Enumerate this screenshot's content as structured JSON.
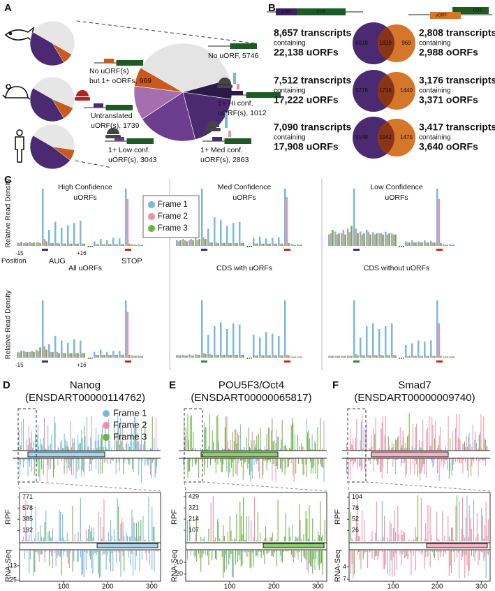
{
  "panel_a": {
    "label": "A",
    "small_pies": {
      "colors": [
        "#e6e6e6",
        "#c85a1e",
        "#4b2a72"
      ],
      "values": [
        [
          50,
          8,
          42
        ],
        [
          48,
          10,
          42
        ],
        [
          44,
          8,
          48
        ]
      ]
    },
    "big_pie": {
      "slices": [
        {
          "label": [
            "No uORF, 5746"
          ],
          "value": 5746,
          "color": "#e4e4e4"
        },
        {
          "label": [
            "1+ Hi conf.",
            "uORF(s), 1012"
          ],
          "value": 1012,
          "color": "#2b1a47"
        },
        {
          "label": [
            "1+ Med conf.",
            "uORF(s), 2863"
          ],
          "value": 2863,
          "color": "#4b2a72"
        },
        {
          "label": [
            "1+ Low conf.",
            "uORF(s), 3043"
          ],
          "value": 3043,
          "color": "#6c3d8e"
        },
        {
          "label": [
            "Untranslated",
            "uORF(s), 1739"
          ],
          "value": 1739,
          "color": "#a56fae"
        },
        {
          "label": [
            "No uORF(s)",
            "but 1+ oORFs, 969"
          ],
          "value": 969,
          "color": "#c85a1e"
        }
      ]
    }
  },
  "panel_b": {
    "label": "B",
    "uorf_tag": "uORF",
    "cds_tag": "CDS",
    "rows": [
      {
        "left": [
          "8,657 transcripts",
          "containing",
          "22,138 uORFs"
        ],
        "venn": [
          6818,
          1839,
          969
        ],
        "right": [
          "2,808 transcripts",
          "containing",
          "2,988 oORFs"
        ]
      },
      {
        "left": [
          "7,512 transcripts",
          "containing",
          "17,222 uORFs"
        ],
        "venn": [
          5776,
          1736,
          1440
        ],
        "right": [
          "3,176 transcripts",
          "containing",
          "3,371 oORFs"
        ]
      },
      {
        "left": [
          "7,090 transcripts",
          "containing",
          "17,908 uORFs"
        ],
        "venn": [
          5148,
          1942,
          1475
        ],
        "right": [
          "3,417 transcripts",
          "containing",
          "3,640 oORFs"
        ]
      }
    ]
  },
  "panel_c": {
    "label": "C",
    "y_label": "Relative Read Density",
    "legend": [
      "Frame 1",
      "Frame 2",
      "Frame 3"
    ],
    "frame_colors": [
      "#7ab8dd",
      "#f08fa8",
      "#6db33f"
    ],
    "position_label": "Position",
    "start_pos": "-15",
    "end_pos": "+16",
    "ellipsis": "...",
    "aug": "AUG",
    "stop": "STOP",
    "aug_color": "#4b2a72",
    "stop_color": "#d42020",
    "facets": [
      {
        "title": [
          "High Confidence",
          "uORFs"
        ],
        "start_marker_color": "#4b2a72",
        "start": [
          [
            0.06,
            0.05,
            0.07
          ],
          [
            0.05,
            0.06,
            0.05
          ],
          [
            0.07,
            0.05,
            0.06
          ],
          [
            0.06,
            0.07,
            0.05
          ],
          [
            1,
            0.12,
            0.08
          ],
          [
            0.28,
            0.05,
            0.05
          ],
          [
            0.42,
            0.05,
            0.04
          ],
          [
            0.32,
            0.04,
            0.04
          ],
          [
            0.36,
            0.04,
            0.04
          ],
          [
            0.4,
            0.04,
            0.04
          ],
          [
            0.44,
            0.04,
            0.04
          ]
        ],
        "stop": [
          [
            0.08,
            0.03,
            0.03
          ],
          [
            0.12,
            0.03,
            0.03
          ],
          [
            0.1,
            0.03,
            0.03
          ],
          [
            0.14,
            0.03,
            0.03
          ],
          [
            0.13,
            0.03,
            0.03
          ],
          [
            1,
            0.82,
            0.04
          ],
          [
            0.03,
            0.02,
            0.02
          ],
          [
            0.03,
            0.02,
            0.02
          ]
        ]
      },
      {
        "title": [
          "Med Confidence",
          "uORFs"
        ],
        "start_marker_color": "#4b2a72",
        "start": [
          [
            0.1,
            0.08,
            0.1
          ],
          [
            0.12,
            0.1,
            0.08
          ],
          [
            0.1,
            0.12,
            0.1
          ],
          [
            0.14,
            0.1,
            0.12
          ],
          [
            1,
            0.15,
            0.12
          ],
          [
            0.3,
            0.06,
            0.06
          ],
          [
            0.5,
            0.06,
            0.05
          ],
          [
            0.45,
            0.05,
            0.05
          ],
          [
            0.35,
            0.05,
            0.05
          ],
          [
            0.4,
            0.05,
            0.05
          ],
          [
            0.42,
            0.05,
            0.05
          ]
        ],
        "stop": [
          [
            0.14,
            0.04,
            0.04
          ],
          [
            0.16,
            0.04,
            0.04
          ],
          [
            0.13,
            0.04,
            0.04
          ],
          [
            0.14,
            0.04,
            0.04
          ],
          [
            0.15,
            0.04,
            0.04
          ],
          [
            1,
            0.85,
            0.05
          ],
          [
            0.03,
            0.02,
            0.02
          ],
          [
            0.03,
            0.02,
            0.02
          ]
        ]
      },
      {
        "title": [
          "Low Confidence",
          "uORFs"
        ],
        "start_marker_color": "#4b2a72",
        "start": [
          [
            0.2,
            0.22,
            0.28
          ],
          [
            0.25,
            0.2,
            0.22
          ],
          [
            0.22,
            0.28,
            0.2
          ],
          [
            0.3,
            0.24,
            0.35
          ],
          [
            1,
            0.3,
            0.22
          ],
          [
            0.25,
            0.2,
            0.22
          ],
          [
            0.28,
            0.25,
            0.2
          ],
          [
            0.24,
            0.2,
            0.22
          ],
          [
            0.22,
            0.22,
            0.2
          ],
          [
            0.25,
            0.2,
            0.22
          ],
          [
            0.22,
            0.2,
            0.2
          ]
        ],
        "stop": [
          [
            0.08,
            0.06,
            0.06
          ],
          [
            0.1,
            0.06,
            0.06
          ],
          [
            0.08,
            0.06,
            0.06
          ],
          [
            0.1,
            0.06,
            0.06
          ],
          [
            0.09,
            0.06,
            0.06
          ],
          [
            1,
            0.82,
            0.05
          ],
          [
            0.03,
            0.02,
            0.02
          ],
          [
            0.03,
            0.02,
            0.02
          ]
        ]
      },
      {
        "title": [
          "All uORFs"
        ],
        "start_marker_color": "#4b2a72",
        "start": [
          [
            0.1,
            0.09,
            0.12
          ],
          [
            0.12,
            0.1,
            0.1
          ],
          [
            0.1,
            0.12,
            0.1
          ],
          [
            0.14,
            0.12,
            0.18
          ],
          [
            1,
            0.2,
            0.14
          ],
          [
            0.24,
            0.1,
            0.1
          ],
          [
            0.38,
            0.1,
            0.08
          ],
          [
            0.3,
            0.08,
            0.08
          ],
          [
            0.26,
            0.08,
            0.08
          ],
          [
            0.32,
            0.08,
            0.08
          ],
          [
            0.3,
            0.08,
            0.08
          ]
        ],
        "stop": [
          [
            0.1,
            0.05,
            0.05
          ],
          [
            0.14,
            0.05,
            0.05
          ],
          [
            0.1,
            0.05,
            0.05
          ],
          [
            0.12,
            0.05,
            0.05
          ],
          [
            0.12,
            0.05,
            0.05
          ],
          [
            1,
            0.8,
            0.05
          ],
          [
            0.04,
            0.03,
            0.03
          ],
          [
            0.04,
            0.03,
            0.03
          ]
        ]
      },
      {
        "title": [
          "CDS with uORFs"
        ],
        "start_marker_color": "#2e8b3a",
        "start": [
          [
            0.05,
            0.04,
            0.04
          ],
          [
            0.05,
            0.04,
            0.04
          ],
          [
            0.06,
            0.04,
            0.04
          ],
          [
            0.06,
            0.05,
            0.05
          ],
          [
            1,
            0.08,
            0.06
          ],
          [
            0.4,
            0.06,
            0.05
          ],
          [
            0.55,
            0.05,
            0.05
          ],
          [
            0.62,
            0.05,
            0.05
          ],
          [
            0.5,
            0.05,
            0.05
          ],
          [
            0.6,
            0.05,
            0.05
          ],
          [
            0.58,
            0.05,
            0.05
          ]
        ],
        "stop": [
          [
            0.4,
            0.04,
            0.04
          ],
          [
            0.35,
            0.04,
            0.04
          ],
          [
            0.45,
            0.04,
            0.04
          ],
          [
            0.42,
            0.04,
            0.04
          ],
          [
            0.38,
            0.04,
            0.04
          ],
          [
            1,
            0.05,
            0.04
          ],
          [
            0.02,
            0.02,
            0.02
          ],
          [
            0.02,
            0.02,
            0.02
          ]
        ]
      },
      {
        "title": [
          "CDS without uORFs"
        ],
        "start_marker_color": "#2e8b3a",
        "start": [
          [
            0.03,
            0.03,
            0.03
          ],
          [
            0.03,
            0.03,
            0.03
          ],
          [
            0.03,
            0.03,
            0.03
          ],
          [
            0.04,
            0.03,
            0.03
          ],
          [
            1,
            0.06,
            0.04
          ],
          [
            0.35,
            0.05,
            0.04
          ],
          [
            0.55,
            0.05,
            0.04
          ],
          [
            0.6,
            0.05,
            0.04
          ],
          [
            0.5,
            0.05,
            0.04
          ],
          [
            0.55,
            0.05,
            0.04
          ],
          [
            0.6,
            0.05,
            0.04
          ]
        ],
        "stop": [
          [
            0.22,
            0.03,
            0.03
          ],
          [
            0.25,
            0.03,
            0.03
          ],
          [
            0.3,
            0.03,
            0.03
          ],
          [
            0.28,
            0.03,
            0.03
          ],
          [
            0.3,
            0.03,
            0.03
          ],
          [
            1,
            0.6,
            0.03
          ],
          [
            0.02,
            0.02,
            0.02
          ],
          [
            0.02,
            0.02,
            0.02
          ]
        ]
      }
    ]
  },
  "tracks": {
    "rpf_label": "RPF",
    "rna_label": "RNA-Seq",
    "panels": [
      {
        "label": "D",
        "gene": "Nanog",
        "transcript": "(ENSDART00000114762)",
        "cds_color": "#a9d3ec",
        "rpf_ylim": [
          0,
          850
        ],
        "rpf_ticks": [
          192,
          385,
          578,
          771
        ],
        "rna_ylim": [
          0,
          26
        ],
        "rna_ticks": [
          13,
          25
        ],
        "xlim": [
          0,
          320
        ],
        "xticks": [
          100,
          200,
          300
        ]
      },
      {
        "label": "E",
        "gene": "POU5F3/Oct4",
        "transcript": "(ENSDART00000065817)",
        "cds_color": "#8ccf6a",
        "rpf_ylim": [
          0,
          470
        ],
        "rpf_ticks": [
          107,
          214,
          321,
          429
        ],
        "rna_ylim": [
          0,
          26
        ],
        "rna_ticks": [
          10,
          20
        ],
        "xlim": [
          0,
          320
        ],
        "xticks": [
          100,
          200,
          300
        ]
      },
      {
        "label": "F",
        "gene": "Smad7",
        "transcript": "(ENSDART00000009740)",
        "cds_color": "#f5b3c2",
        "rpf_ylim": [
          0,
          115
        ],
        "rpf_ticks": [
          26,
          52,
          78,
          104
        ],
        "rna_ylim": [
          0,
          7.5
        ],
        "rna_ticks": [
          4,
          7
        ],
        "xlim": [
          0,
          320
        ],
        "xticks": [
          100,
          200,
          300
        ]
      }
    ]
  }
}
